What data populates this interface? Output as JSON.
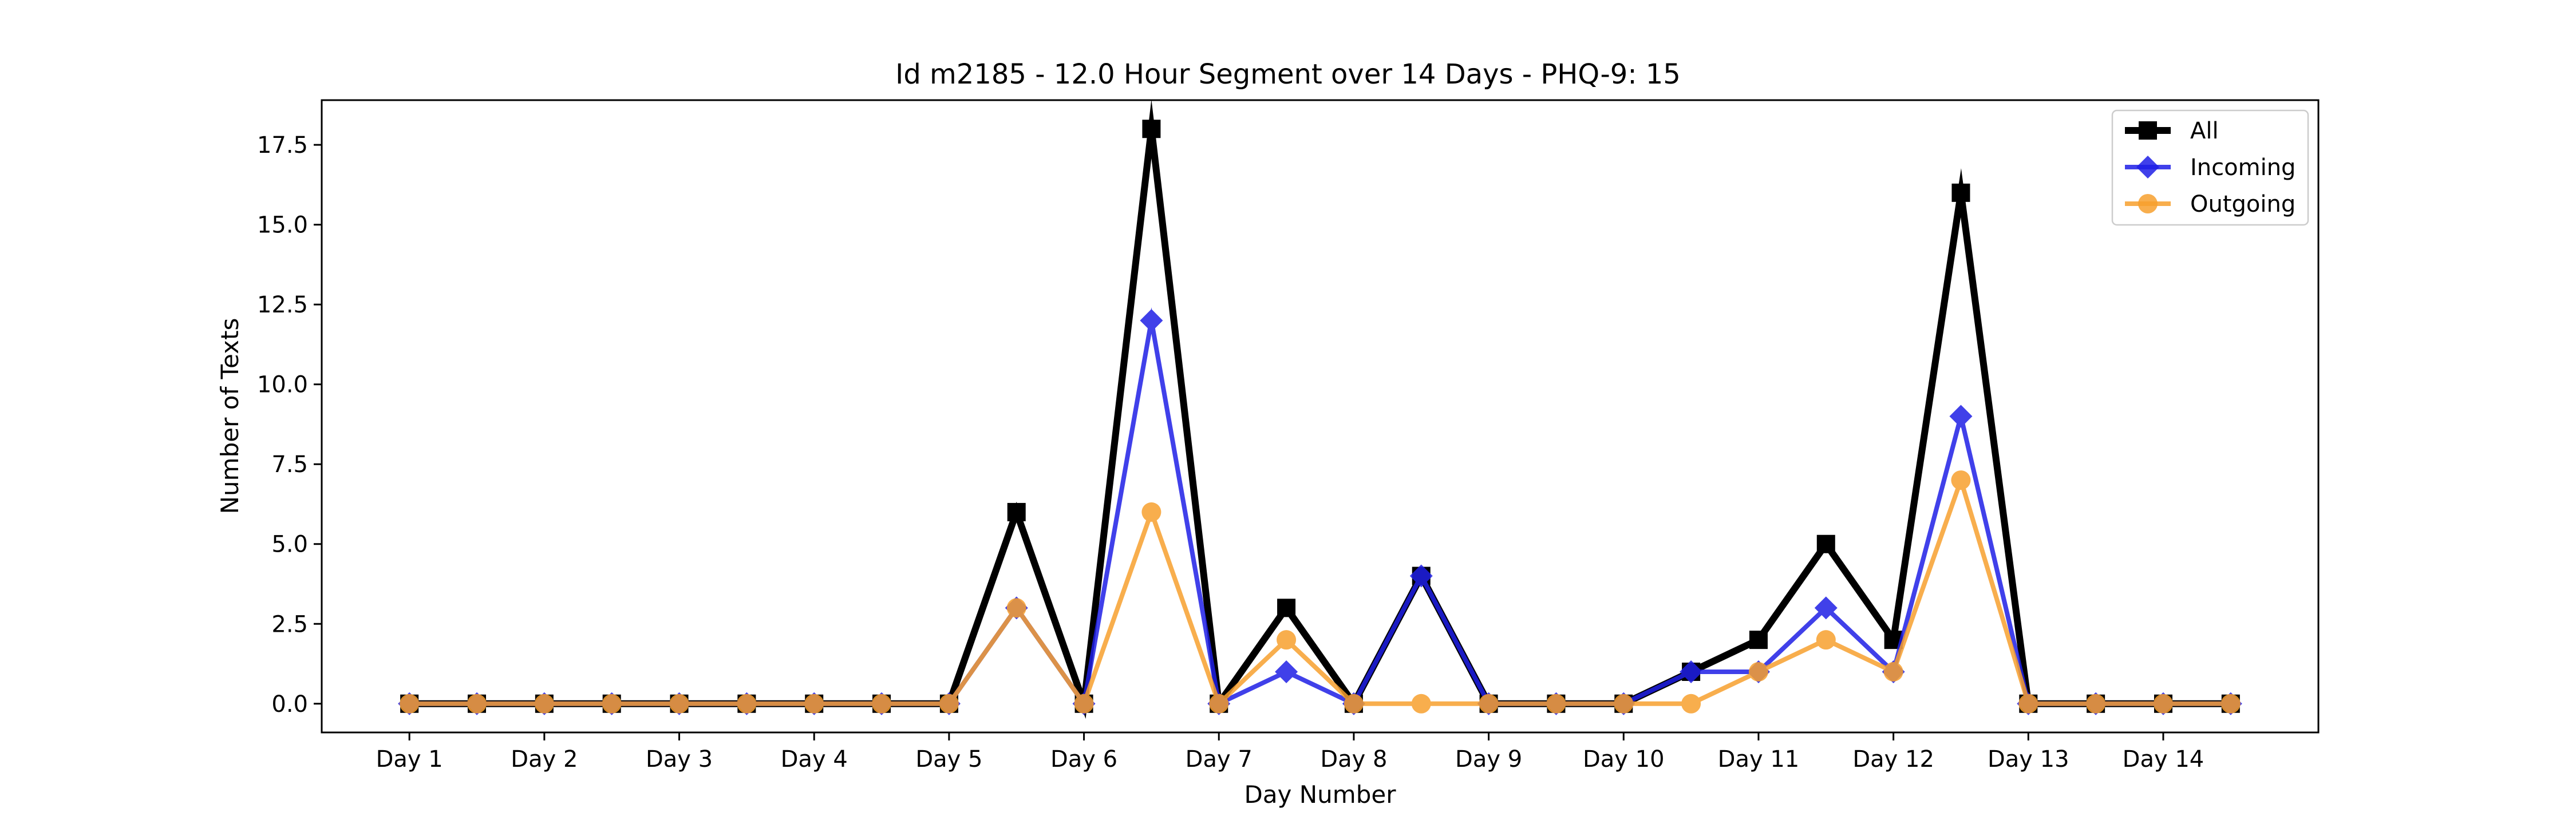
{
  "chart_data": {
    "type": "line",
    "title": "Id m2185 - 12.0 Hour Segment over 14 Days - PHQ-9: 15",
    "xlabel": "Day Number",
    "ylabel": "Number of Texts",
    "x": [
      0,
      1,
      2,
      3,
      4,
      5,
      6,
      7,
      8,
      9,
      10,
      11,
      12,
      13,
      14,
      15,
      16,
      17,
      18,
      19,
      20,
      21,
      22,
      23,
      24,
      25,
      26,
      27
    ],
    "x_tick_positions": [
      0,
      2,
      4,
      6,
      8,
      10,
      12,
      14,
      16,
      18,
      20,
      22,
      24,
      26
    ],
    "x_tick_labels": [
      "Day 1",
      "Day 2",
      "Day 3",
      "Day 4",
      "Day 5",
      "Day 6",
      "Day 7",
      "Day 8",
      "Day 9",
      "Day 10",
      "Day 11",
      "Day 12",
      "Day 13",
      "Day 14"
    ],
    "xlim": [
      -1.3,
      28.3
    ],
    "ylim": [
      -0.9,
      18.9
    ],
    "y_ticks": [
      0.0,
      2.5,
      5.0,
      7.5,
      10.0,
      12.5,
      15.0,
      17.5
    ],
    "y_tick_labels": [
      "0.0",
      "2.5",
      "5.0",
      "7.5",
      "10.0",
      "12.5",
      "15.0",
      "17.5"
    ],
    "grid": false,
    "legend_position": "top-right",
    "series": [
      {
        "name": "All",
        "color": "#000000",
        "marker": "square",
        "values": [
          0,
          0,
          0,
          0,
          0,
          0,
          0,
          0,
          0,
          6,
          0,
          18,
          0,
          3,
          0,
          4,
          0,
          0,
          0,
          1,
          2,
          5,
          2,
          16,
          0,
          0,
          0,
          0
        ]
      },
      {
        "name": "Incoming",
        "color": "#1f1fe6",
        "marker": "diamond",
        "values": [
          0,
          0,
          0,
          0,
          0,
          0,
          0,
          0,
          0,
          3,
          0,
          12,
          0,
          1,
          0,
          4,
          0,
          0,
          0,
          1,
          1,
          3,
          1,
          9,
          0,
          0,
          0,
          0
        ]
      },
      {
        "name": "Outgoing",
        "color": "#f7a02e",
        "marker": "circle",
        "values": [
          0,
          0,
          0,
          0,
          0,
          0,
          0,
          0,
          0,
          3,
          0,
          6,
          0,
          2,
          0,
          0,
          0,
          0,
          0,
          0,
          1,
          2,
          1,
          7,
          0,
          0,
          0,
          0
        ]
      }
    ]
  }
}
